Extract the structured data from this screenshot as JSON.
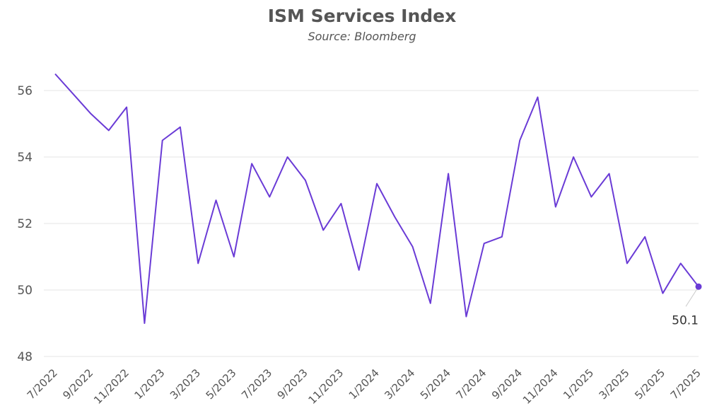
{
  "chart_data": {
    "type": "line",
    "title": "ISM Services Index",
    "subtitle": "Source: Bloomberg",
    "xlabel": "",
    "ylabel": "",
    "ylim": [
      48,
      56.5
    ],
    "yticks": [
      48,
      50,
      52,
      54,
      56
    ],
    "grid": true,
    "line_color": "#6a3bd6",
    "x": [
      "7/2022",
      "8/2022",
      "9/2022",
      "10/2022",
      "11/2022",
      "12/2022",
      "1/2023",
      "2/2023",
      "3/2023",
      "4/2023",
      "5/2023",
      "6/2023",
      "7/2023",
      "8/2023",
      "9/2023",
      "10/2023",
      "11/2023",
      "12/2023",
      "1/2024",
      "2/2024",
      "3/2024",
      "4/2024",
      "5/2024",
      "6/2024",
      "7/2024",
      "8/2024",
      "9/2024",
      "10/2024",
      "11/2024",
      "12/2024",
      "1/2025",
      "2/2025",
      "3/2025",
      "4/2025",
      "5/2025",
      "6/2025",
      "7/2025"
    ],
    "xtick_labels": [
      "7/2022",
      "9/2022",
      "11/2022",
      "1/2023",
      "3/2023",
      "5/2023",
      "7/2023",
      "9/2023",
      "11/2023",
      "1/2024",
      "3/2024",
      "5/2024",
      "7/2024",
      "9/2024",
      "11/2024",
      "1/2025",
      "3/2025",
      "5/2025",
      "7/2025"
    ],
    "series": [
      {
        "values": [
          56.5,
          55.9,
          55.3,
          54.8,
          55.5,
          49.0,
          54.5,
          54.9,
          50.8,
          52.7,
          51.0,
          53.8,
          52.8,
          54.0,
          53.3,
          51.8,
          52.6,
          50.6,
          53.2,
          52.2,
          51.3,
          49.6,
          53.5,
          49.2,
          51.4,
          51.6,
          54.5,
          55.8,
          52.5,
          54.0,
          52.8,
          53.5,
          50.8,
          51.6,
          49.9,
          50.8,
          50.1
        ]
      }
    ],
    "annotations": [
      {
        "x": "7/2025",
        "text": "50.1"
      }
    ]
  }
}
